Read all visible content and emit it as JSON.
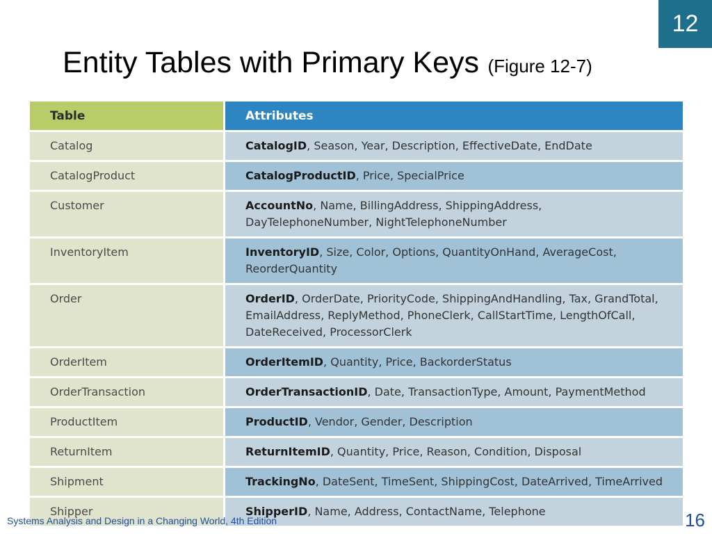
{
  "chapter_badge": "12",
  "title": "Entity Tables with Primary Keys",
  "figure_ref": "(Figure 12-7)",
  "table": {
    "headers": [
      "Table",
      "Attributes"
    ],
    "rows": [
      {
        "table": "Catalog",
        "key": "CatalogID",
        "rest": ", Season, Year, Description, EffectiveDate, EndDate"
      },
      {
        "table": "CatalogProduct",
        "key": "CatalogProductID",
        "rest": ", Price, SpecialPrice"
      },
      {
        "table": "Customer",
        "key": "AccountNo",
        "rest": ", Name, BillingAddress, ShippingAddress, DayTelephoneNumber, NightTelephoneNumber"
      },
      {
        "table": "InventoryItem",
        "key": "InventoryID",
        "rest": ", Size, Color, Options, QuantityOnHand, AverageCost, ReorderQuantity"
      },
      {
        "table": "Order",
        "key": "OrderID",
        "rest": ", OrderDate, PriorityCode, ShippingAndHandling, Tax, GrandTotal, EmailAddress, ReplyMethod, PhoneClerk, CallStartTime, LengthOfCall, DateReceived, ProcessorClerk"
      },
      {
        "table": "OrderItem",
        "key": "OrderItemID",
        "rest": ", Quantity, Price, BackorderStatus"
      },
      {
        "table": "OrderTransaction",
        "key": "OrderTransactionID",
        "rest": ", Date, TransactionType, Amount, PaymentMethod"
      },
      {
        "table": "ProductItem",
        "key": "ProductID",
        "rest": ", Vendor, Gender, Description"
      },
      {
        "table": "ReturnItem",
        "key": "ReturnItemID",
        "rest": ", Quantity, Price, Reason, Condition, Disposal"
      },
      {
        "table": "Shipment",
        "key": "TrackingNo",
        "rest": ", DateSent, TimeSent, ShippingCost, DateArrived, TimeArrived"
      },
      {
        "table": "Shipper",
        "key": "ShipperID",
        "rest": ", Name, Address, ContactName, Telephone"
      }
    ]
  },
  "footer": "Systems Analysis and Design in a Changing World, 4th Edition",
  "page_number": "16",
  "colors": {
    "badge": "#1e6f8c",
    "table_header": "#b8cd6a",
    "attributes_header": "#2d86c2",
    "name_cell": "#e0e4cc",
    "attr_light": "#c2d3dd",
    "attr_dark": "#a1c1d7",
    "footer_text": "#1e4fa1"
  }
}
